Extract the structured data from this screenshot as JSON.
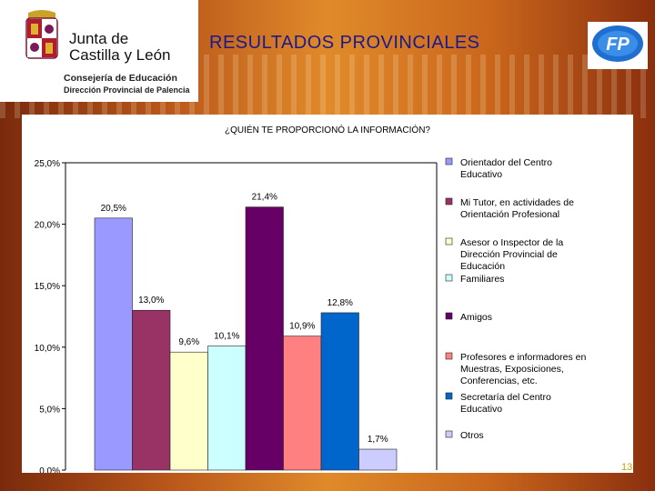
{
  "header": {
    "org_line1": "Junta de",
    "org_line2": "Castilla y León",
    "dept_line1": "Consejería de Educación",
    "dept_line2": "Dirección Provincial de Palencia",
    "slide_title": "RESULTADOS PROVINCIALES",
    "fp_logo_text": "FP"
  },
  "page_number": "13",
  "colors": {
    "title": "#1a1a8c",
    "series": [
      "#9999ff",
      "#993366",
      "#ffffcc",
      "#ccffff",
      "#660066",
      "#ff8080",
      "#0066cc",
      "#ccccff"
    ]
  },
  "chart_data": {
    "type": "bar",
    "title": "¿QUIÉN TE PROPORCIONÓ LA INFORMACIÓN?",
    "ylim": [
      0,
      25
    ],
    "yticks": [
      "0,0%",
      "5,0%",
      "10,0%",
      "15,0%",
      "20,0%",
      "25,0%"
    ],
    "grid": false,
    "legend_position": "right",
    "series": [
      {
        "name": "Orientador del Centro Educativo",
        "value": 20.5,
        "label": "20,5%"
      },
      {
        "name": "Mi Tutor, en actividades de Orientación Profesional",
        "value": 13.0,
        "label": "13,0%"
      },
      {
        "name": "Asesor o Inspector de la Dirección Provincial de Educación",
        "value": 9.6,
        "label": "9,6%"
      },
      {
        "name": "Familiares",
        "value": 10.1,
        "label": "10,1%"
      },
      {
        "name": "Amigos",
        "value": 21.4,
        "label": "21,4%"
      },
      {
        "name": "Profesores e informadores en Muestras, Exposiciones, Conferencias, etc.",
        "value": 10.9,
        "label": "10,9%"
      },
      {
        "name": "Secretaría del Centro Educativo",
        "value": 12.8,
        "label": "12,8%"
      },
      {
        "name": "Otros",
        "value": 1.7,
        "label": "1,7%"
      }
    ]
  }
}
